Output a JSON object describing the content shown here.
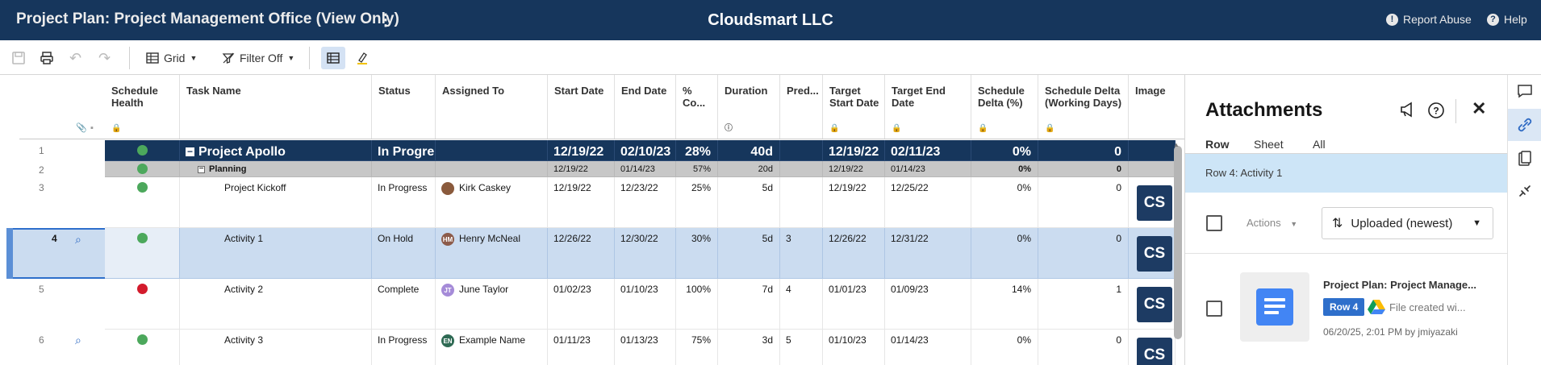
{
  "header": {
    "title": "Project Plan: Project Management Office (View Only)",
    "more_glyph": "⋮",
    "company": "Cloudsmart LLC",
    "report_abuse": "Report Abuse",
    "help": "Help"
  },
  "toolbar": {
    "view_label": "Grid",
    "filter_label": "Filter Off"
  },
  "columns": {
    "schedule_health": "Schedule Health",
    "task_name": "Task Name",
    "status": "Status",
    "assigned_to": "Assigned To",
    "start_date": "Start Date",
    "end_date": "End Date",
    "pct_complete": "% Co...",
    "duration": "Duration",
    "predecessors": "Pred...",
    "target_start": "Target Start Date",
    "target_end": "Target End Date",
    "schedule_delta_pct": "Schedule Delta (%)",
    "schedule_delta_days": "Schedule Delta (Working Days)",
    "image": "Image"
  },
  "rows": [
    {
      "num": "1",
      "health": "green",
      "task": "Project Apollo",
      "status": "In Progre",
      "assigned": "",
      "start": "12/19/22",
      "end": "02/10/23",
      "pct": "28%",
      "duration": "40d",
      "pred": "",
      "tstart": "12/19/22",
      "tend": "02/11/23",
      "dpct": "0%",
      "ddays": "0"
    },
    {
      "num": "2",
      "health": "green",
      "task": "Planning",
      "status": "",
      "assigned": "",
      "start": "12/19/22",
      "end": "01/14/23",
      "pct": "57%",
      "duration": "20d",
      "pred": "",
      "tstart": "12/19/22",
      "tend": "01/14/23",
      "dpct": "0%",
      "ddays": "0"
    },
    {
      "num": "3",
      "health": "green",
      "task": "Project Kickoff",
      "status": "In Progress",
      "assigned": "Kirk Caskey",
      "start": "12/19/22",
      "end": "12/23/22",
      "pct": "25%",
      "duration": "5d",
      "pred": "",
      "tstart": "12/19/22",
      "tend": "12/25/22",
      "dpct": "0%",
      "ddays": "0"
    },
    {
      "num": "4",
      "health": "green",
      "task": "Activity 1",
      "status": "On Hold",
      "assigned": "Henry McNeal",
      "initials": "HM",
      "start": "12/26/22",
      "end": "12/30/22",
      "pct": "30%",
      "duration": "5d",
      "pred": "3",
      "tstart": "12/26/22",
      "tend": "12/31/22",
      "dpct": "0%",
      "ddays": "0"
    },
    {
      "num": "5",
      "health": "red",
      "task": "Activity 2",
      "status": "Complete",
      "assigned": "June Taylor",
      "initials": "JT",
      "start": "01/02/23",
      "end": "01/10/23",
      "pct": "100%",
      "duration": "7d",
      "pred": "4",
      "tstart": "01/01/23",
      "tend": "01/09/23",
      "dpct": "14%",
      "ddays": "1"
    },
    {
      "num": "6",
      "health": "green",
      "task": "Activity 3",
      "status": "In Progress",
      "assigned": "Example Name",
      "initials": "EN",
      "start": "01/11/23",
      "end": "01/13/23",
      "pct": "75%",
      "duration": "3d",
      "pred": "5",
      "tstart": "01/10/23",
      "tend": "01/14/23",
      "dpct": "0%",
      "ddays": "0"
    }
  ],
  "thumb_text": "CS",
  "panel": {
    "title": "Attachments",
    "tabs": [
      "Row",
      "Sheet",
      "All"
    ],
    "row_context": "Row 4: Activity 1",
    "actions_label": "Actions",
    "sort_label": "Uploaded (newest)",
    "file": {
      "name": "Project Plan: Project Manage...",
      "row_pill": "Row 4",
      "note": "File created wi...",
      "meta": "06/20/25, 2:01 PM by jmiyazaki"
    }
  },
  "colors": {
    "header_bg": "#16365c",
    "selected_row": "#cbdcf0",
    "accent": "#2e6fcb",
    "health_green": "#4ca85c",
    "health_red": "#d31b2c"
  }
}
